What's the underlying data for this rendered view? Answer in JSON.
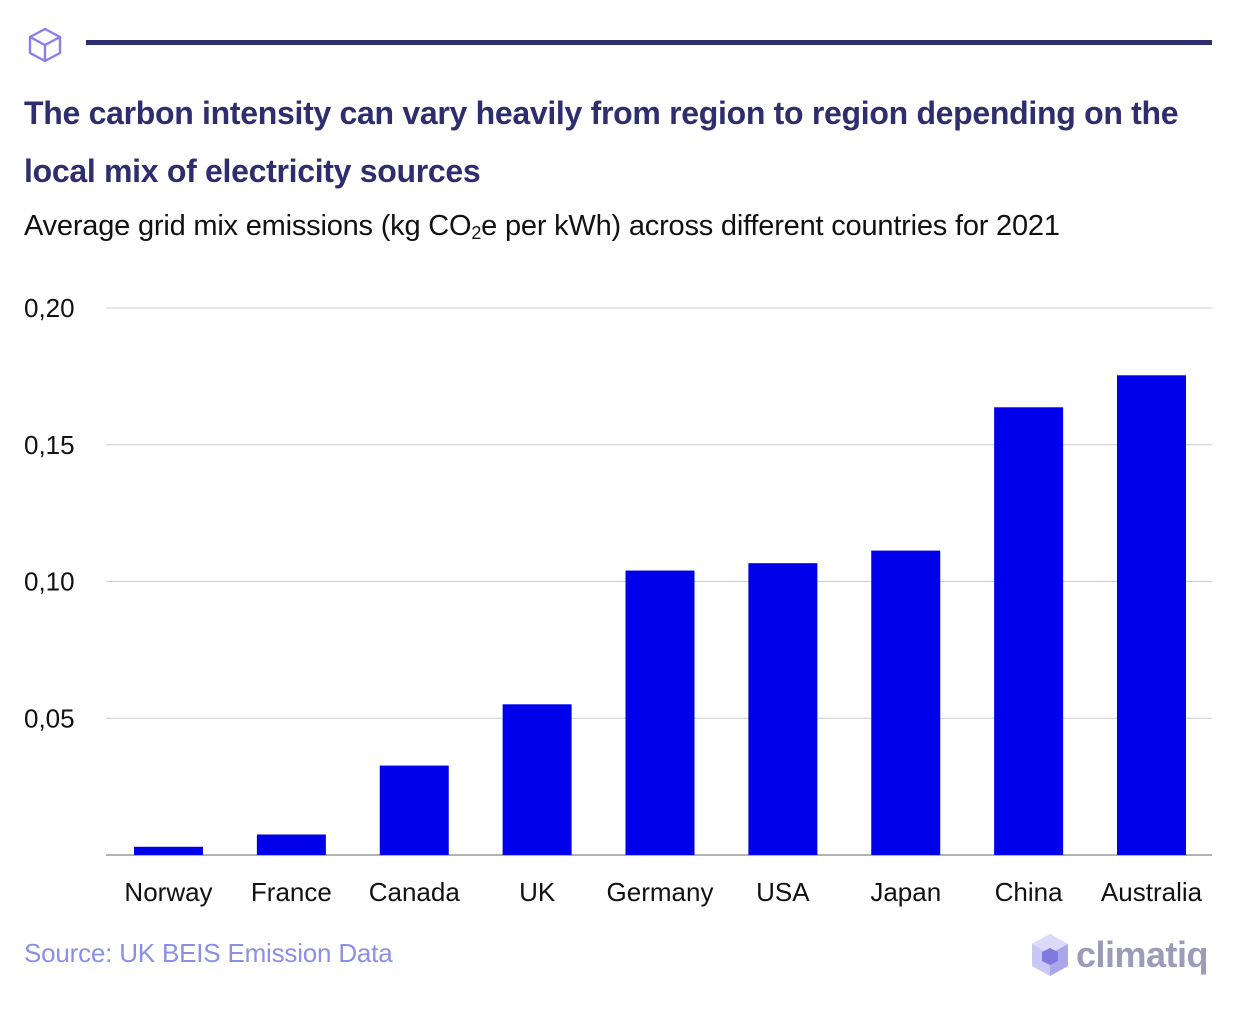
{
  "header": {
    "logo_icon": "cube-outline-icon",
    "title": "The carbon intensity can vary heavily from region to region depending on the local mix of electricity sources",
    "subtitle_prefix": "Average grid mix emissions (kg CO",
    "subtitle_subscript": "2",
    "subtitle_suffix": "e per kWh) across different countries for 2021"
  },
  "chart_data": {
    "type": "bar",
    "title": "The carbon intensity can vary heavily from region to region depending on the local mix of electricity sources",
    "subtitle": "Average grid mix emissions (kg CO2e per kWh) across different countries for 2021",
    "categories": [
      "Norway",
      "France",
      "Canada",
      "UK",
      "Germany",
      "USA",
      "Japan",
      "China",
      "Australia"
    ],
    "values": [
      0.003,
      0.0075,
      0.0327,
      0.0551,
      0.104,
      0.1067,
      0.1113,
      0.1637,
      0.1754
    ],
    "ylim": [
      0,
      0.2
    ],
    "yticks": [
      0.05,
      0.1,
      0.15,
      0.2
    ],
    "ytick_labels": [
      "0,05",
      "0,10",
      "0,15",
      "0,20"
    ],
    "xlabel": "",
    "ylabel": "",
    "grid": true,
    "bar_color": "#0000ea",
    "grid_color": "#cccccc",
    "axis_color": "#999999"
  },
  "footer": {
    "source": "Source: UK BEIS Emission Data",
    "brand_name": "climatiq",
    "brand_icon": "climatiq-cube-icon"
  },
  "colors": {
    "title": "#2e2d6e",
    "source": "#8b8fe6",
    "brand": "#9a9cb8"
  }
}
